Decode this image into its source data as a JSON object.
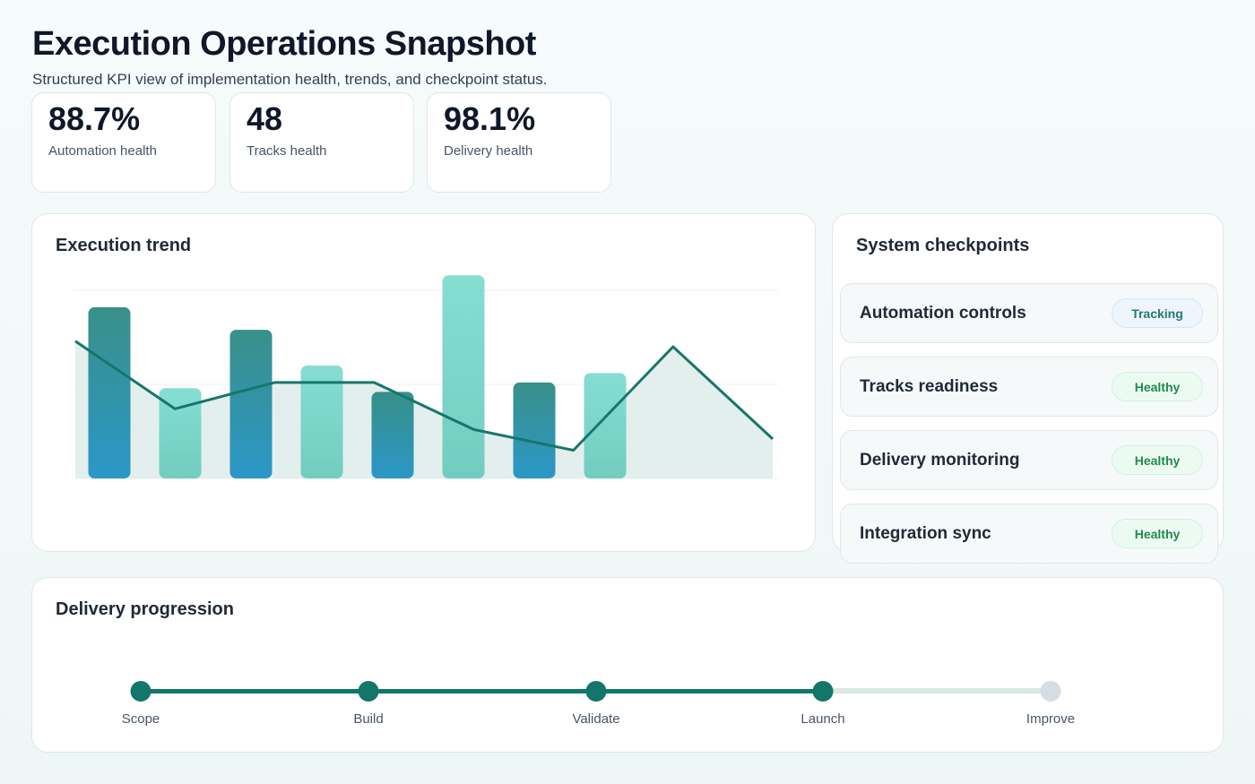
{
  "header": {
    "title": "Execution Operations Snapshot",
    "subtitle": "Structured KPI view of implementation health, trends, and checkpoint status."
  },
  "kpis": [
    {
      "value": "88.7%",
      "label": "Automation health"
    },
    {
      "value": "48",
      "label": "Tracks health"
    },
    {
      "value": "98.1%",
      "label": "Delivery health"
    }
  ],
  "trend": {
    "title": "Execution trend"
  },
  "chart_data": {
    "type": "bar",
    "title": "Execution trend",
    "grid": true,
    "ylim": [
      0,
      100
    ],
    "bars": [
      91,
      48,
      79,
      60,
      46,
      108,
      51,
      56
    ],
    "line": [
      73,
      37,
      51,
      51,
      26,
      15,
      70,
      21
    ],
    "colors": {
      "dark_top": "#2e8a82",
      "dark_bottom": "#2293c6",
      "light_top": "#7fdccf",
      "light_bottom": "#6ccbbd",
      "line": "#17766b",
      "area": "#e3efed"
    }
  },
  "checkpoints": {
    "title": "System checkpoints",
    "items": [
      {
        "name": "Automation controls",
        "status": "Tracking"
      },
      {
        "name": "Tracks readiness",
        "status": "Healthy"
      },
      {
        "name": "Delivery monitoring",
        "status": "Healthy"
      },
      {
        "name": "Integration sync",
        "status": "Healthy"
      }
    ]
  },
  "progression": {
    "title": "Delivery progression",
    "steps": [
      {
        "label": "Scope",
        "done": true
      },
      {
        "label": "Build",
        "done": true
      },
      {
        "label": "Validate",
        "done": true
      },
      {
        "label": "Launch",
        "done": true
      },
      {
        "label": "Improve",
        "done": false
      }
    ],
    "colors": {
      "done": "#12766a",
      "pending": "#d6dee3",
      "track_pending": "#d7e8e5"
    }
  }
}
